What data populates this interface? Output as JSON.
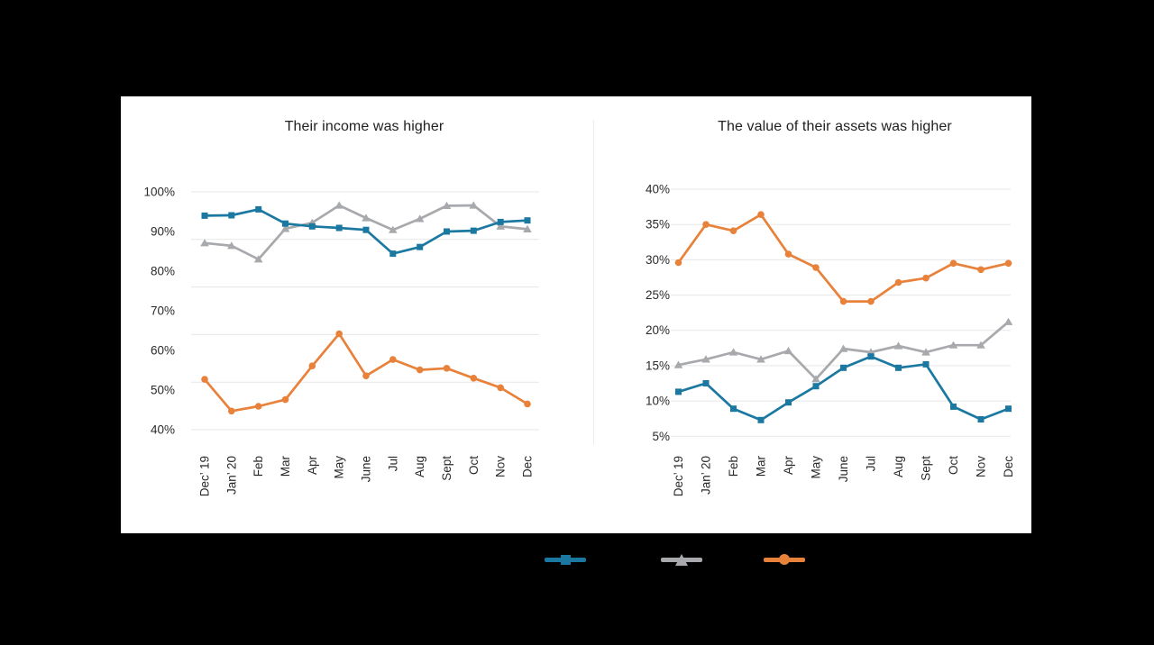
{
  "panel": {
    "background": "#ffffff"
  },
  "chart_data": [
    {
      "id": "income",
      "type": "line",
      "title": "Their income was higher",
      "categories": [
        "Dec’ 19",
        "Jan’ 20",
        "Feb",
        "Mar",
        "Apr",
        "May",
        "June",
        "Jul",
        "Aug",
        "Sept",
        "Oct",
        "Nov",
        "Dec"
      ],
      "xlabel": "",
      "ylabel": "",
      "ylim": [
        40,
        100
      ],
      "ytick_labels": [
        "100%",
        "90%",
        "80%",
        "70%",
        "60%",
        "50%",
        "40%"
      ],
      "ytick_values": [
        100,
        90,
        80,
        70,
        60,
        50,
        40
      ],
      "gridline_values": [
        100,
        88,
        76,
        64,
        52,
        40
      ],
      "grid": true,
      "legend_position": "below-panel",
      "series": [
        {
          "name": "blue",
          "marker": "square",
          "color": "#1B78A0",
          "values": [
            94.0,
            94.1,
            95.6,
            92.0,
            91.3,
            90.9,
            90.4,
            84.4,
            86.1,
            90.0,
            90.2,
            92.4,
            92.8
          ]
        },
        {
          "name": "gray",
          "marker": "triangle",
          "color": "#A7A9AC",
          "values": [
            87.1,
            86.4,
            83.0,
            90.7,
            92.2,
            96.6,
            93.4,
            90.4,
            93.2,
            96.5,
            96.6,
            91.3,
            90.6
          ]
        },
        {
          "name": "orange",
          "marker": "circle",
          "color": "#E8813A",
          "values": [
            52.7,
            44.7,
            45.9,
            47.6,
            56.1,
            64.2,
            53.6,
            57.7,
            55.1,
            55.5,
            53.0,
            50.6,
            46.5
          ]
        }
      ]
    },
    {
      "id": "assets",
      "type": "line",
      "title": "The value of their assets was higher",
      "categories": [
        "Dec’ 19",
        "Jan’ 20",
        "Feb",
        "Mar",
        "Apr",
        "May",
        "June",
        "Jul",
        "Aug",
        "Sept",
        "Oct",
        "Nov",
        "Dec"
      ],
      "xlabel": "",
      "ylabel": "",
      "ylim": [
        5,
        40
      ],
      "ytick_labels": [
        "40%",
        "35%",
        "30%",
        "25%",
        "20%",
        "15%",
        "10%",
        "5%"
      ],
      "ytick_values": [
        40,
        35,
        30,
        25,
        20,
        15,
        10,
        5
      ],
      "gridline_values": [
        40,
        35,
        30,
        25,
        20,
        15,
        10,
        5
      ],
      "grid": true,
      "legend_position": "below-panel",
      "series": [
        {
          "name": "blue",
          "marker": "square",
          "color": "#1B78A0",
          "values": [
            11.3,
            12.5,
            8.9,
            7.3,
            9.8,
            12.1,
            14.7,
            16.3,
            14.7,
            15.2,
            9.2,
            7.4,
            8.9
          ]
        },
        {
          "name": "gray",
          "marker": "triangle",
          "color": "#A7A9AC",
          "values": [
            15.1,
            15.9,
            16.9,
            15.9,
            17.1,
            13.1,
            17.4,
            16.9,
            17.8,
            16.9,
            17.9,
            17.9,
            21.2
          ]
        },
        {
          "name": "orange",
          "marker": "circle",
          "color": "#E8813A",
          "values": [
            29.6,
            35.0,
            34.1,
            36.4,
            30.8,
            28.9,
            24.1,
            24.1,
            26.8,
            27.4,
            29.5,
            28.6,
            29.5
          ]
        }
      ]
    }
  ],
  "legend": {
    "items": [
      {
        "series": "blue",
        "marker": "square",
        "color": "#1B78A0"
      },
      {
        "series": "gray",
        "marker": "triangle",
        "color": "#A7A9AC"
      },
      {
        "series": "orange",
        "marker": "circle",
        "color": "#E8813A"
      }
    ]
  }
}
